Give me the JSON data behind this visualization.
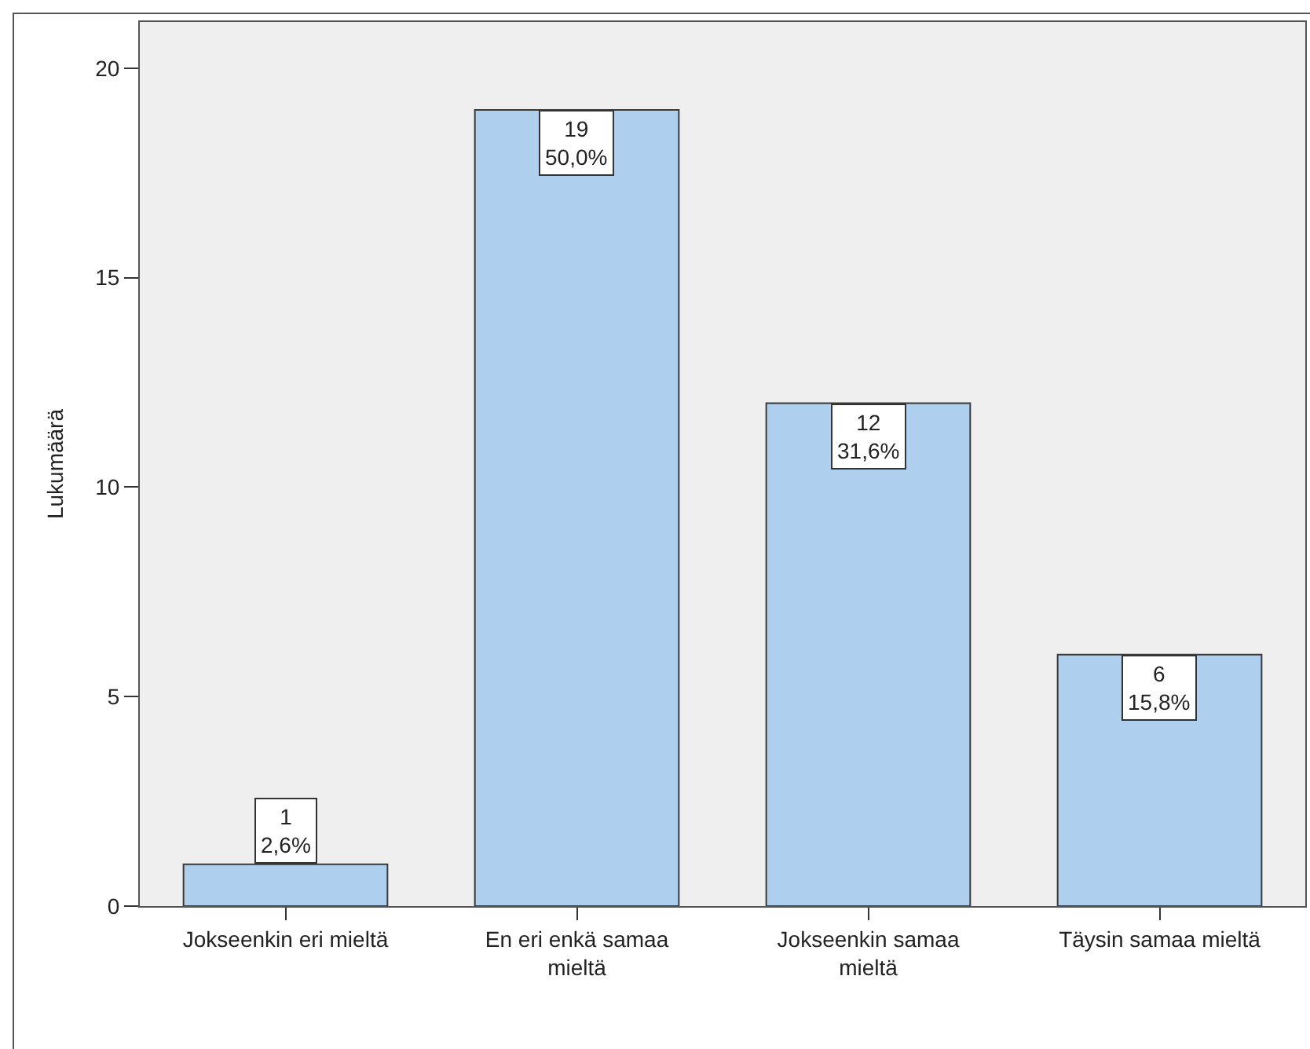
{
  "chart_data": {
    "type": "bar",
    "ylabel": "Lukumäärä",
    "categories": [
      "Jokseenkin eri mieltä",
      "En eri enkä samaa mieltä",
      "Jokseenkin samaa mieltä",
      "Täysin samaa mieltä"
    ],
    "values": [
      1,
      19,
      12,
      6
    ],
    "color": "#aecfee",
    "value_labels": [
      "1\n2,6%",
      "19\n50,0%",
      "12\n31,6%",
      "6\n15,8%"
    ],
    "ylim": [
      0,
      21.1
    ],
    "yticks": [
      0,
      5,
      10,
      15,
      20
    ]
  }
}
